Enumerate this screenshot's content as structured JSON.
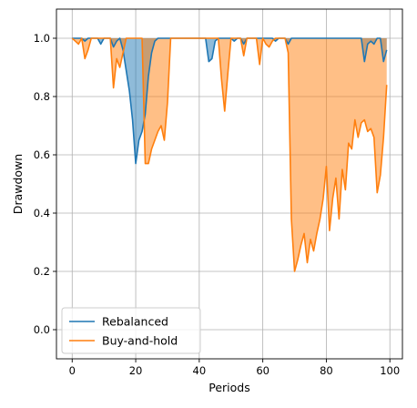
{
  "chart_data": {
    "type": "area",
    "title": "",
    "xlabel": "Periods",
    "ylabel": "Drawdown",
    "xlim": [
      -4.95,
      103.95
    ],
    "ylim": [
      -0.1,
      1.1
    ],
    "xticks": [
      0,
      20,
      40,
      60,
      80,
      100
    ],
    "yticks": [
      0.0,
      0.2,
      0.4,
      0.6,
      0.8,
      1.0
    ],
    "xtick_labels": [
      "0",
      "20",
      "40",
      "60",
      "80",
      "100"
    ],
    "ytick_labels": [
      "0.0",
      "0.2",
      "0.4",
      "0.6",
      "0.8",
      "1.0"
    ],
    "grid": true,
    "legend_position": "lower-left",
    "fill_to": 1.0,
    "series": [
      {
        "name": "Rebalanced",
        "color": "#1f77b4",
        "fill_color": "#1f77b4",
        "fill_opacity": 0.5,
        "x": [
          0,
          1,
          2,
          3,
          4,
          5,
          6,
          7,
          8,
          9,
          10,
          11,
          12,
          13,
          14,
          15,
          16,
          17,
          18,
          19,
          20,
          21,
          22,
          23,
          24,
          25,
          26,
          27,
          28,
          29,
          30,
          31,
          32,
          33,
          34,
          35,
          36,
          37,
          38,
          39,
          40,
          41,
          42,
          43,
          44,
          45,
          46,
          47,
          48,
          49,
          50,
          51,
          52,
          53,
          54,
          55,
          56,
          57,
          58,
          59,
          60,
          61,
          62,
          63,
          64,
          65,
          66,
          67,
          68,
          69,
          70,
          71,
          72,
          73,
          74,
          75,
          76,
          77,
          78,
          79,
          80,
          81,
          82,
          83,
          84,
          85,
          86,
          87,
          88,
          89,
          90,
          91,
          92,
          93,
          94,
          95,
          96,
          97,
          98,
          99
        ],
        "values": [
          1.0,
          1.0,
          1.0,
          1.0,
          0.99,
          1.0,
          1.0,
          1.0,
          1.0,
          0.98,
          1.0,
          1.0,
          1.0,
          0.97,
          0.99,
          1.0,
          0.96,
          0.89,
          0.82,
          0.72,
          0.57,
          0.65,
          0.68,
          0.74,
          0.87,
          0.95,
          0.99,
          1.0,
          1.0,
          1.0,
          1.0,
          1.0,
          1.0,
          1.0,
          1.0,
          1.0,
          1.0,
          1.0,
          1.0,
          1.0,
          1.0,
          1.0,
          1.0,
          0.92,
          0.93,
          0.99,
          1.0,
          1.0,
          1.0,
          1.0,
          1.0,
          0.99,
          1.0,
          1.0,
          0.98,
          1.0,
          1.0,
          1.0,
          1.0,
          1.0,
          1.0,
          1.0,
          1.0,
          1.0,
          0.99,
          1.0,
          1.0,
          1.0,
          0.98,
          1.0,
          1.0,
          1.0,
          1.0,
          1.0,
          1.0,
          1.0,
          1.0,
          1.0,
          1.0,
          1.0,
          1.0,
          1.0,
          1.0,
          1.0,
          1.0,
          1.0,
          1.0,
          1.0,
          1.0,
          1.0,
          1.0,
          1.0,
          0.92,
          0.98,
          0.99,
          0.98,
          1.0,
          1.0,
          0.92,
          0.96
        ]
      },
      {
        "name": "Buy-and-hold",
        "color": "#ff7f0e",
        "fill_color": "#ff7f0e",
        "fill_opacity": 0.5,
        "x": [
          0,
          1,
          2,
          3,
          4,
          5,
          6,
          7,
          8,
          9,
          10,
          11,
          12,
          13,
          14,
          15,
          16,
          17,
          18,
          19,
          20,
          21,
          22,
          23,
          24,
          25,
          26,
          27,
          28,
          29,
          30,
          31,
          32,
          33,
          34,
          35,
          36,
          37,
          38,
          39,
          40,
          41,
          42,
          43,
          44,
          45,
          46,
          47,
          48,
          49,
          50,
          51,
          52,
          53,
          54,
          55,
          56,
          57,
          58,
          59,
          60,
          61,
          62,
          63,
          64,
          65,
          66,
          67,
          68,
          69,
          70,
          71,
          72,
          73,
          74,
          75,
          76,
          77,
          78,
          79,
          80,
          81,
          82,
          83,
          84,
          85,
          86,
          87,
          88,
          89,
          90,
          91,
          92,
          93,
          94,
          95,
          96,
          97,
          98,
          99
        ],
        "values": [
          1.0,
          0.99,
          0.98,
          1.0,
          0.93,
          0.96,
          1.0,
          1.0,
          1.0,
          1.0,
          1.0,
          1.0,
          1.0,
          0.83,
          0.93,
          0.9,
          0.95,
          1.0,
          1.0,
          1.0,
          1.0,
          1.0,
          1.0,
          0.57,
          0.57,
          0.62,
          0.65,
          0.68,
          0.7,
          0.65,
          0.78,
          1.0,
          1.0,
          1.0,
          1.0,
          1.0,
          1.0,
          1.0,
          1.0,
          1.0,
          1.0,
          1.0,
          1.0,
          1.0,
          1.0,
          1.0,
          1.0,
          0.86,
          0.75,
          0.88,
          1.0,
          1.0,
          1.0,
          1.0,
          0.94,
          1.0,
          1.0,
          1.0,
          1.0,
          0.91,
          1.0,
          0.98,
          0.97,
          0.99,
          1.0,
          1.0,
          1.0,
          1.0,
          0.95,
          0.38,
          0.2,
          0.24,
          0.29,
          0.33,
          0.23,
          0.31,
          0.27,
          0.33,
          0.38,
          0.45,
          0.56,
          0.34,
          0.45,
          0.52,
          0.38,
          0.55,
          0.48,
          0.64,
          0.62,
          0.72,
          0.66,
          0.71,
          0.72,
          0.68,
          0.69,
          0.66,
          0.47,
          0.53,
          0.66,
          0.84
        ]
      }
    ]
  }
}
